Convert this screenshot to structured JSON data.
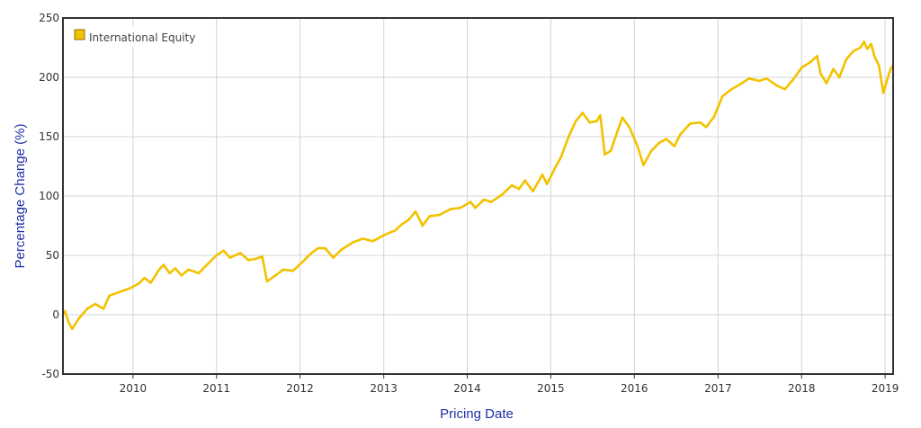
{
  "chart_data": {
    "type": "line",
    "xlabel": "Pricing Date",
    "ylabel": "Percentage Change (%)",
    "xlim": [
      "2009-03-01",
      "2019-02-05"
    ],
    "ylim": [
      -50,
      250
    ],
    "y_ticks": [
      -50,
      0,
      50,
      100,
      150,
      200,
      250
    ],
    "x_ticks": [
      "2010",
      "2011",
      "2012",
      "2013",
      "2014",
      "2015",
      "2016",
      "2017",
      "2018",
      "2019"
    ],
    "grid": true,
    "legend_position": "top-left",
    "series": [
      {
        "name": "International Equity",
        "color": "#f2c200",
        "points": [
          [
            "2009-03-01",
            0
          ],
          [
            "2009-03-10",
            3
          ],
          [
            "2009-03-25",
            -6
          ],
          [
            "2009-04-10",
            -12
          ],
          [
            "2009-05-10",
            -3
          ],
          [
            "2009-06-15",
            5
          ],
          [
            "2009-07-20",
            9
          ],
          [
            "2009-08-25",
            5
          ],
          [
            "2009-09-20",
            16
          ],
          [
            "2009-11-01",
            19
          ],
          [
            "2009-12-15",
            22
          ],
          [
            "2010-01-25",
            26
          ],
          [
            "2010-02-20",
            31
          ],
          [
            "2010-03-20",
            27
          ],
          [
            "2010-04-25",
            38
          ],
          [
            "2010-05-15",
            42
          ],
          [
            "2010-06-10",
            35
          ],
          [
            "2010-07-05",
            39
          ],
          [
            "2010-08-01",
            33
          ],
          [
            "2010-09-01",
            38
          ],
          [
            "2010-10-15",
            35
          ],
          [
            "2010-11-20",
            42
          ],
          [
            "2011-01-01",
            50
          ],
          [
            "2011-02-01",
            54
          ],
          [
            "2011-03-01",
            48
          ],
          [
            "2011-04-15",
            52
          ],
          [
            "2011-05-20",
            46
          ],
          [
            "2011-06-20",
            47
          ],
          [
            "2011-07-20",
            49
          ],
          [
            "2011-08-10",
            28
          ],
          [
            "2011-09-15",
            33
          ],
          [
            "2011-10-20",
            38
          ],
          [
            "2011-12-01",
            37
          ],
          [
            "2012-01-15",
            45
          ],
          [
            "2012-02-20",
            52
          ],
          [
            "2012-03-20",
            56
          ],
          [
            "2012-04-20",
            56
          ],
          [
            "2012-05-25",
            48
          ],
          [
            "2012-07-01",
            55
          ],
          [
            "2012-08-20",
            61
          ],
          [
            "2012-10-01",
            64
          ],
          [
            "2012-11-15",
            62
          ],
          [
            "2013-01-01",
            67
          ],
          [
            "2013-02-20",
            71
          ],
          [
            "2013-03-20",
            76
          ],
          [
            "2013-04-20",
            80
          ],
          [
            "2013-05-20",
            87
          ],
          [
            "2013-06-20",
            75
          ],
          [
            "2013-07-20",
            83
          ],
          [
            "2013-09-01",
            84
          ],
          [
            "2013-10-20",
            89
          ],
          [
            "2013-12-01",
            90
          ],
          [
            "2014-01-15",
            95
          ],
          [
            "2014-02-05",
            90
          ],
          [
            "2014-03-15",
            97
          ],
          [
            "2014-04-15",
            95
          ],
          [
            "2014-06-01",
            101
          ],
          [
            "2014-07-15",
            109
          ],
          [
            "2014-08-15",
            106
          ],
          [
            "2014-09-10",
            113
          ],
          [
            "2014-10-15",
            104
          ],
          [
            "2014-11-25",
            118
          ],
          [
            "2014-12-15",
            110
          ],
          [
            "2015-01-15",
            122
          ],
          [
            "2015-02-15",
            133
          ],
          [
            "2015-03-20",
            150
          ],
          [
            "2015-04-20",
            163
          ],
          [
            "2015-05-20",
            170
          ],
          [
            "2015-06-20",
            162
          ],
          [
            "2015-07-20",
            163
          ],
          [
            "2015-08-05",
            168
          ],
          [
            "2015-08-25",
            135
          ],
          [
            "2015-09-20",
            138
          ],
          [
            "2015-10-20",
            155
          ],
          [
            "2015-11-10",
            166
          ],
          [
            "2015-12-10",
            158
          ],
          [
            "2016-01-15",
            142
          ],
          [
            "2016-02-10",
            126
          ],
          [
            "2016-03-15",
            138
          ],
          [
            "2016-04-20",
            145
          ],
          [
            "2016-05-20",
            148
          ],
          [
            "2016-06-24",
            142
          ],
          [
            "2016-07-20",
            152
          ],
          [
            "2016-09-01",
            161
          ],
          [
            "2016-10-15",
            162
          ],
          [
            "2016-11-10",
            158
          ],
          [
            "2016-12-15",
            167
          ],
          [
            "2017-01-20",
            184
          ],
          [
            "2017-03-01",
            190
          ],
          [
            "2017-04-15",
            195
          ],
          [
            "2017-05-15",
            199
          ],
          [
            "2017-07-01",
            197
          ],
          [
            "2017-08-01",
            199
          ],
          [
            "2017-09-15",
            193
          ],
          [
            "2017-10-20",
            190
          ],
          [
            "2017-11-25",
            198
          ],
          [
            "2018-01-01",
            208
          ],
          [
            "2018-02-10",
            213
          ],
          [
            "2018-03-10",
            218
          ],
          [
            "2018-03-25",
            203
          ],
          [
            "2018-04-20",
            195
          ],
          [
            "2018-05-20",
            207
          ],
          [
            "2018-06-15",
            200
          ],
          [
            "2018-07-15",
            215
          ],
          [
            "2018-08-15",
            222
          ],
          [
            "2018-09-15",
            225
          ],
          [
            "2018-10-01",
            230
          ],
          [
            "2018-10-15",
            224
          ],
          [
            "2018-11-01",
            228
          ],
          [
            "2018-11-15",
            218
          ],
          [
            "2018-12-05",
            210
          ],
          [
            "2018-12-24",
            187
          ],
          [
            "2019-01-10",
            198
          ],
          [
            "2019-01-25",
            207
          ],
          [
            "2019-02-05",
            210
          ]
        ]
      }
    ]
  }
}
